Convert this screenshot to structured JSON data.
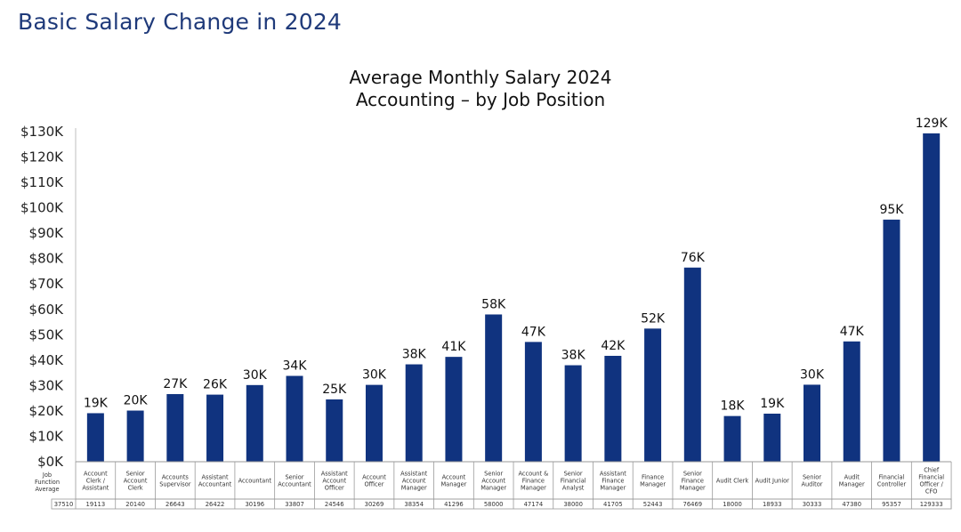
{
  "page": {
    "title": "Basic Salary Change in 2024"
  },
  "chart_data": {
    "type": "bar",
    "title": [
      "Average Monthly Salary 2024",
      "Accounting – by Job Position"
    ],
    "ylim": [
      0,
      130000
    ],
    "yticks": [
      "$0K",
      "$10K",
      "$20K",
      "$30K",
      "$40K",
      "$50K",
      "$60K",
      "$70K",
      "$80K",
      "$90K",
      "$100K",
      "$110K",
      "$120K",
      "$130K"
    ],
    "bar_color": "#10337f",
    "categories": [
      "Account Clerk / Assistant",
      "Senior Account Clerk",
      "Accounts Supervisor",
      "Assistant Accountant",
      "Accountant",
      "Senior Accountant",
      "Assistant Account Officer",
      "Account Officer",
      "Assistant Account Manager",
      "Account Manager",
      "Senior Account Manager",
      "Account & Finance Manager",
      "Senior Financial Analyst",
      "Assistant Finance Manager",
      "Finance Manager",
      "Senior Finance Manager",
      "Audit Clerk",
      "Audit Junior",
      "Senior Auditor",
      "Audit Manager",
      "Financial Controller",
      "Chief Financial Officer / CFO"
    ],
    "category_lines": [
      [
        "Account",
        "Clerk /",
        "Assistant"
      ],
      [
        "Senior",
        "Account",
        "Clerk"
      ],
      [
        "Accounts",
        "Supervisor"
      ],
      [
        "Assistant",
        "Accountant"
      ],
      [
        "Accountant"
      ],
      [
        "Senior",
        "Accountant"
      ],
      [
        "Assistant",
        "Account",
        "Officer"
      ],
      [
        "Account",
        "Officer"
      ],
      [
        "Assistant",
        "Account",
        "Manager"
      ],
      [
        "Account",
        "Manager"
      ],
      [
        "Senior",
        "Account",
        "Manager"
      ],
      [
        "Account &",
        "Finance",
        "Manager"
      ],
      [
        "Senior",
        "Financial",
        "Analyst"
      ],
      [
        "Assistant",
        "Finance",
        "Manager"
      ],
      [
        "Finance",
        "Manager"
      ],
      [
        "Senior",
        "Finance",
        "Manager"
      ],
      [
        "Audit Clerk"
      ],
      [
        "Audit Junior"
      ],
      [
        "Senior",
        "Auditor"
      ],
      [
        "Audit",
        "Manager"
      ],
      [
        "Financial",
        "Controller"
      ],
      [
        "Chief",
        "Financial",
        "Officer /",
        "CFO"
      ]
    ],
    "values": [
      19113,
      20140,
      26643,
      26422,
      30196,
      33807,
      24546,
      30269,
      38354,
      41296,
      58000,
      47174,
      38000,
      41705,
      52443,
      76469,
      18000,
      18933,
      30333,
      47380,
      95357,
      129333
    ],
    "data_labels": [
      "19K",
      "20K",
      "27K",
      "26K",
      "30K",
      "34K",
      "25K",
      "30K",
      "38K",
      "41K",
      "58K",
      "47K",
      "38K",
      "42K",
      "52K",
      "76K",
      "18K",
      "19K",
      "30K",
      "47K",
      "95K",
      "129K"
    ],
    "table_row": {
      "label_lines": [
        "Job",
        "Function",
        "Average"
      ],
      "label_value": "37510",
      "values": [
        "19113",
        "20140",
        "26643",
        "26422",
        "30196",
        "33807",
        "24546",
        "30269",
        "38354",
        "41296",
        "58000",
        "47174",
        "38000",
        "41705",
        "52443",
        "76469",
        "18000",
        "18933",
        "30333",
        "47380",
        "95357",
        "129333"
      ]
    }
  }
}
